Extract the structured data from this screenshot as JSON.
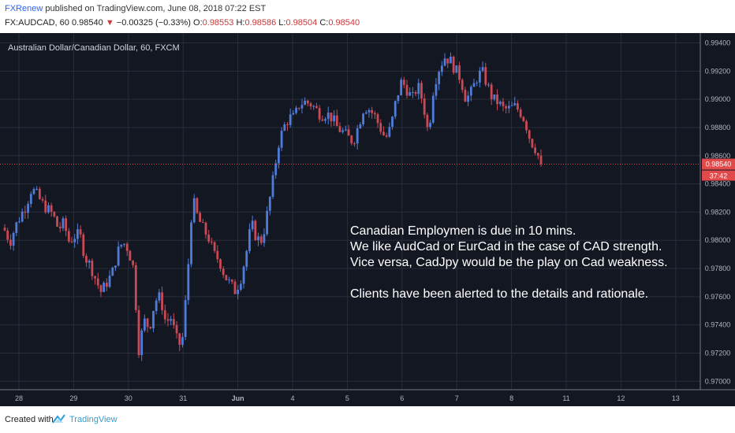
{
  "header": {
    "author": "FXRenew",
    "published": "published on TradingView.com, June 08, 2018 07:22 EST",
    "symbol": "FX:AUDCAD, 60",
    "last": "0.98540",
    "change_symbol": "▼",
    "change": "−0.00325 (−0.33%)",
    "o_label": "O:",
    "o": "0.98553",
    "h_label": "H:",
    "h": "0.98586",
    "l_label": "L:",
    "l": "0.98504",
    "c_label": "C:",
    "c": "0.98540"
  },
  "footer": {
    "created": "Created with",
    "brand": "TradingView"
  },
  "colors": {
    "background": "#131722",
    "up": "#4f7cd8",
    "down": "#c94a55",
    "grid": "#2a2e39",
    "price_line": "#e04a4a"
  },
  "chart_data": {
    "type": "candlestick",
    "title": "Australian Dollar/Canadian Dollar, 60, FXCM",
    "ylim": [
      0.9694,
      0.9947
    ],
    "y_ticks": [
      "0.97000",
      "0.97200",
      "0.97400",
      "0.97600",
      "0.97800",
      "0.98000",
      "0.98200",
      "0.98400",
      "0.98600",
      "0.98800",
      "0.99000",
      "0.99200",
      "0.99400"
    ],
    "x_ticks": [
      "28",
      "29",
      "30",
      "31",
      "Jun",
      "4",
      "5",
      "6",
      "7",
      "8",
      "11",
      "12",
      "13"
    ],
    "last_price": "0.98540",
    "countdown": "37:42",
    "grid": true,
    "annotation": [
      "Canadian Employmen is due in 10 mins.",
      "We like AudCad or EurCad in the case of CAD strength.",
      "Vice versa, CadJpy would be the play on Cad weakness.",
      "",
      "Clients have been alerted to the details and rationale."
    ],
    "anchors": [
      [
        0.9807
      ],
      [
        0.9799
      ],
      [
        0.981
      ],
      [
        0.9818
      ],
      [
        0.9825
      ],
      [
        0.9837
      ],
      [
        0.9832
      ],
      [
        0.9826
      ],
      [
        0.9822
      ],
      [
        0.9818
      ],
      [
        0.9808
      ],
      [
        0.9812
      ],
      [
        0.9799
      ],
      [
        0.9803
      ],
      [
        0.9804
      ],
      [
        0.9788
      ],
      [
        0.9782
      ],
      [
        0.9772
      ],
      [
        0.9763
      ],
      [
        0.977
      ],
      [
        0.9776
      ],
      [
        0.9791
      ],
      [
        0.9799
      ],
      [
        0.9794
      ],
      [
        0.978
      ],
      [
        0.9723
      ],
      [
        0.9743
      ],
      [
        0.9738
      ],
      [
        0.9757
      ],
      [
        0.976
      ],
      [
        0.9742
      ],
      [
        0.9745
      ],
      [
        0.973
      ],
      [
        0.9724
      ],
      [
        0.9769
      ],
      [
        0.983
      ],
      [
        0.9816
      ],
      [
        0.9808
      ],
      [
        0.9802
      ],
      [
        0.979
      ],
      [
        0.9786
      ],
      [
        0.9775
      ],
      [
        0.9769
      ],
      [
        0.9764
      ],
      [
        0.9773
      ],
      [
        0.979
      ],
      [
        0.9812
      ],
      [
        0.9801
      ],
      [
        0.98
      ],
      [
        0.982
      ],
      [
        0.9842
      ],
      [
        0.9868
      ],
      [
        0.988
      ],
      [
        0.9887
      ],
      [
        0.9887
      ],
      [
        0.9897
      ],
      [
        0.9898
      ],
      [
        0.9897
      ],
      [
        0.9893
      ],
      [
        0.9889
      ],
      [
        0.989
      ],
      [
        0.9887
      ],
      [
        0.988
      ],
      [
        0.9877
      ],
      [
        0.9873
      ],
      [
        0.987
      ],
      [
        0.9882
      ],
      [
        0.9895
      ],
      [
        0.9893
      ],
      [
        0.9888
      ],
      [
        0.988
      ],
      [
        0.9872
      ],
      [
        0.988
      ],
      [
        0.99
      ],
      [
        0.9913
      ],
      [
        0.9907
      ],
      [
        0.99
      ],
      [
        0.991
      ],
      [
        0.9898
      ],
      [
        0.9875
      ],
      [
        0.991
      ],
      [
        0.9922
      ],
      [
        0.993
      ],
      [
        0.9928
      ],
      [
        0.9921
      ],
      [
        0.9915
      ],
      [
        0.99
      ],
      [
        0.9905
      ],
      [
        0.9915
      ],
      [
        0.992
      ],
      [
        0.991
      ],
      [
        0.99
      ],
      [
        0.9898
      ],
      [
        0.9893
      ],
      [
        0.9893
      ],
      [
        0.9895
      ],
      [
        0.9892
      ],
      [
        0.9885
      ],
      [
        0.9871
      ],
      [
        0.9865
      ],
      [
        0.9854
      ]
    ]
  }
}
